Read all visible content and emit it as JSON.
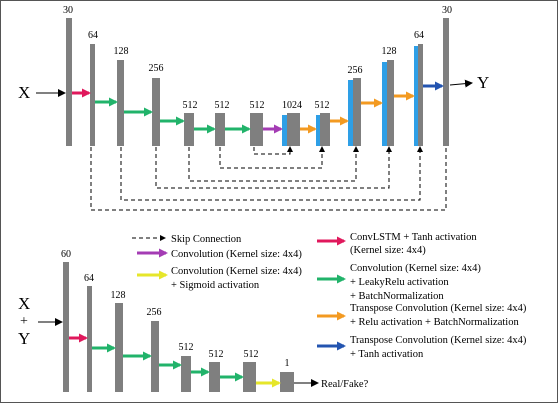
{
  "colors": {
    "block": "#7f7f7f",
    "blue_block": "#2e9fe6",
    "pink": "#e0185c",
    "green": "#21b36a",
    "purple": "#a43cb4",
    "orange": "#f39a21",
    "yellow": "#e6e62a",
    "navy": "#2354b0"
  },
  "generator": {
    "input_label": "X",
    "output_label": "Y",
    "encoder_labels": [
      "30",
      "64",
      "128",
      "256",
      "512",
      "512",
      "512",
      "1024"
    ],
    "decoder_labels": [
      "512",
      "256",
      "128",
      "64",
      "30"
    ]
  },
  "discriminator": {
    "input_label_top": "X",
    "input_label_plus": "+",
    "input_label_bottom": "Y",
    "layer_labels": [
      "60",
      "64",
      "128",
      "256",
      "512",
      "512",
      "512",
      "1"
    ],
    "output_label": "Real/Fake?"
  },
  "legend": {
    "skip": "Skip Connection",
    "purple": "Convolution (Kernel size: 4x4)",
    "yellow_line1": "Convolution (Kernel size: 4x4)",
    "yellow_line2": "+ Sigmoid activation",
    "pink_line1": "ConvLSTM + Tanh activation",
    "pink_line2": "(Kernel size: 4x4)",
    "green_line1": "Convolution (Kernel size: 4x4)",
    "green_line2": "+ LeakyRelu activation",
    "green_line3": "+ BatchNormalization",
    "orange_line1": "Transpose Convolution (Kernel size: 4x4)",
    "orange_line2": "+ Relu activation + BatchNormalization",
    "navy_line1": "Transpose Convolution (Kernel size: 4x4)",
    "navy_line2": "+ Tanh activation"
  }
}
